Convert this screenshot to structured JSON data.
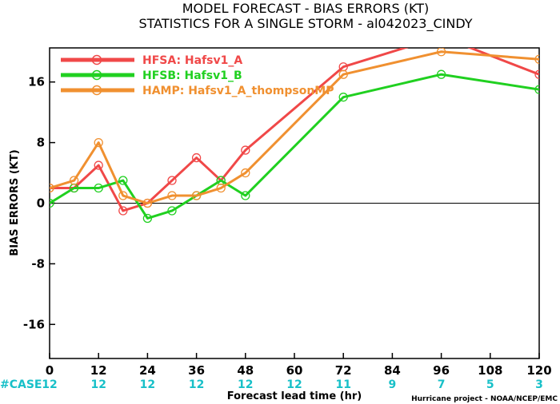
{
  "chart_data": {
    "type": "line",
    "title": "MODEL FORECAST - BIAS ERRORS (KT)",
    "subtitle": "STATISTICS FOR A SINGLE STORM - al042023_CINDY",
    "xlabel": "Forecast lead time (hr)",
    "ylabel": "BIAS ERRORS (KT)",
    "xlim": [
      0,
      120
    ],
    "ylim": [
      -20.5,
      20.5
    ],
    "x_ticks": [
      0,
      12,
      24,
      36,
      48,
      60,
      72,
      84,
      96,
      108,
      120
    ],
    "y_ticks": [
      -16,
      -8,
      0,
      8,
      16
    ],
    "case_label": "#CASE",
    "case_positions": [
      0,
      12,
      24,
      36,
      48,
      60,
      72,
      84,
      96,
      108,
      120
    ],
    "case_counts": [
      "12",
      "12",
      "12",
      "12",
      "12",
      "12",
      "11",
      "9",
      "7",
      "5",
      "3"
    ],
    "zero_line": true,
    "legend_position": "top-left",
    "credit": "Hurricane project - NOAA/NCEP/EMC",
    "series": [
      {
        "name": "HFSA: Hafsv1_A",
        "color": "#f04848",
        "x": [
          0,
          6,
          12,
          18,
          24,
          30,
          36,
          42,
          48,
          72,
          96,
          120
        ],
        "y": [
          2,
          2,
          5,
          -1,
          0,
          3,
          6,
          3,
          7,
          18,
          22,
          17
        ]
      },
      {
        "name": "HFSB: Hafsv1_B",
        "color": "#20d020",
        "x": [
          0,
          6,
          12,
          18,
          24,
          30,
          36,
          42,
          48,
          72,
          96,
          120
        ],
        "y": [
          0,
          2,
          2,
          3,
          -2,
          -1,
          1,
          3,
          1,
          14,
          17,
          15
        ]
      },
      {
        "name": "HAMP: Hafsv1_A_thompsonMP",
        "color": "#f09030",
        "x": [
          0,
          6,
          12,
          18,
          24,
          30,
          36,
          42,
          48,
          72,
          96,
          120
        ],
        "y": [
          2,
          3,
          8,
          1,
          0,
          1,
          1,
          2,
          4,
          17,
          20,
          19
        ]
      }
    ]
  }
}
